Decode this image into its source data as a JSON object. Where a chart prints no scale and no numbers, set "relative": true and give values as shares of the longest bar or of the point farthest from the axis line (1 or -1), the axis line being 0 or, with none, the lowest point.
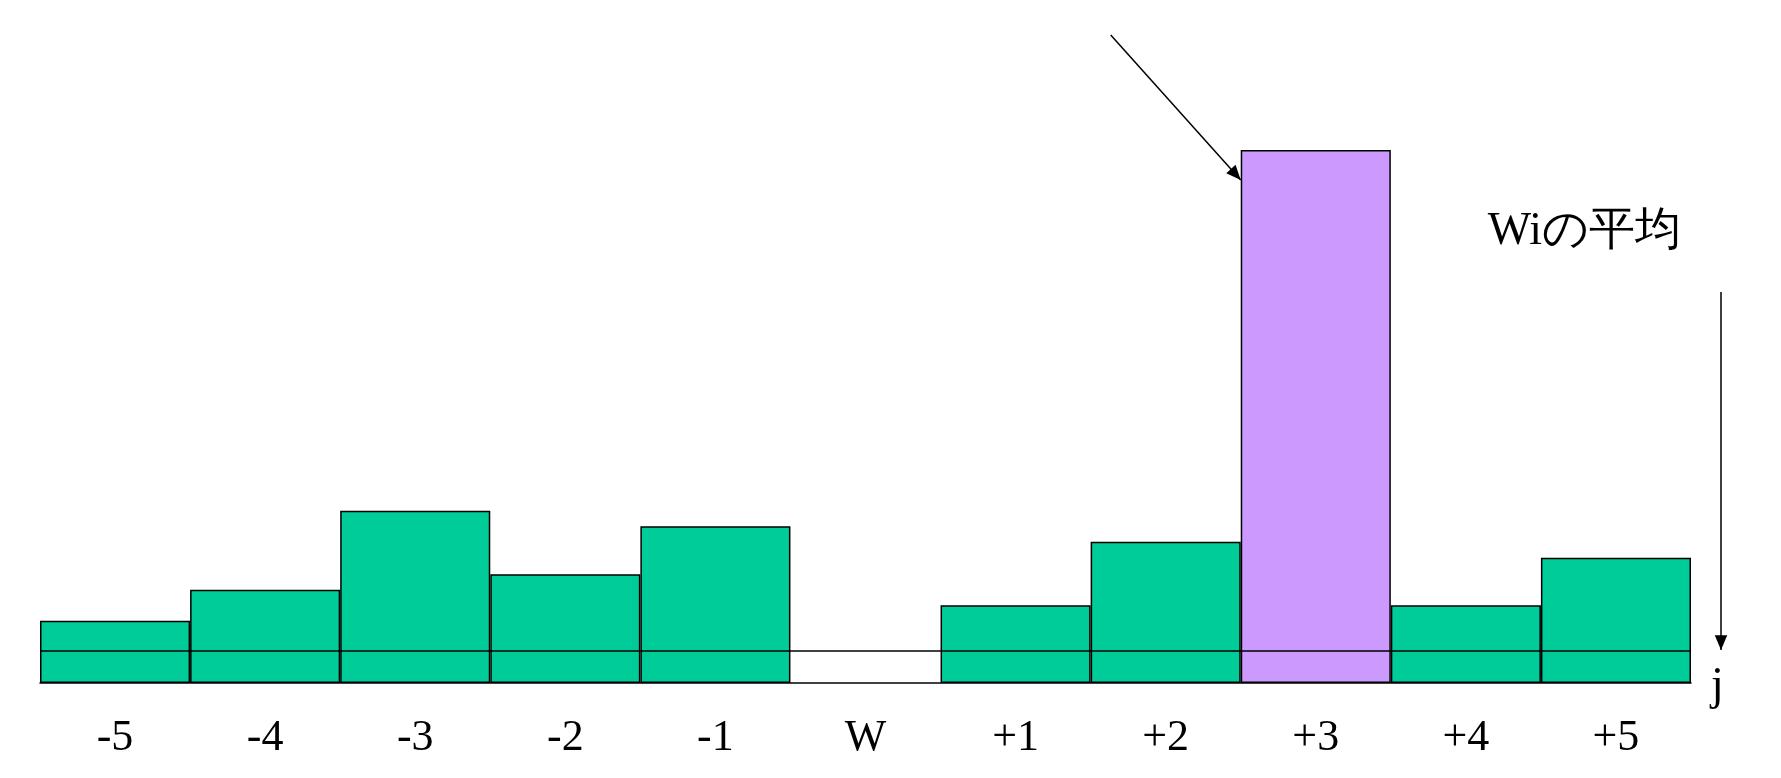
{
  "chart_data": {
    "type": "bar",
    "relative": true,
    "xlabel": "j",
    "categories": [
      "-5",
      "-4",
      "-3",
      "-2",
      "-1",
      "W",
      "+1",
      "+2",
      "+3",
      "+4",
      "+5"
    ],
    "values": [
      0.117,
      0.175,
      0.323,
      0.204,
      0.294,
      null,
      0.146,
      0.265,
      1,
      0.146,
      0.235
    ],
    "colors": [
      "#00cc99",
      "#00cc99",
      "#00cc99",
      "#00cc99",
      "#00cc99",
      "#00cc99",
      "#00cc99",
      "#00cc99",
      "#cc99ff",
      "#00cc99",
      "#00cc99"
    ],
    "ref_lines": [
      {
        "axis": "y",
        "value": 0.058,
        "label": "Wiの平均",
        "color": "#000000"
      }
    ]
  }
}
